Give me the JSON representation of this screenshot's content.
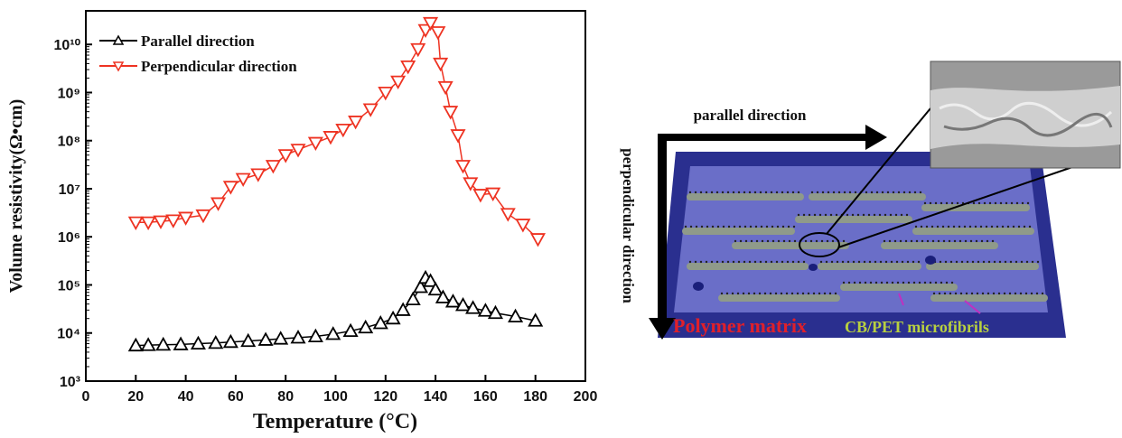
{
  "chart_data": {
    "type": "line",
    "x_label": "Temperature (°C)",
    "y_label": "Volume resistivity(Ω•cm)",
    "xlim": [
      0,
      200
    ],
    "xticks": [
      0,
      20,
      40,
      60,
      80,
      100,
      120,
      140,
      160,
      180,
      200
    ],
    "ylim": [
      1000,
      50000000000
    ],
    "log_y": true,
    "yticks": [
      {
        "value": 1000,
        "label": "10³"
      },
      {
        "value": 10000,
        "label": "10⁴"
      },
      {
        "value": 100000,
        "label": "10⁵"
      },
      {
        "value": 1000000,
        "label": "10⁶"
      },
      {
        "value": 10000000,
        "label": "10⁷"
      },
      {
        "value": 100000000,
        "label": "10⁸"
      },
      {
        "value": 1000000000,
        "label": "10⁹"
      },
      {
        "value": 10000000000,
        "label": "10¹⁰"
      }
    ],
    "legend": "upper left",
    "series": [
      {
        "name": "Parallel direction",
        "color": "#000000",
        "marker": "triangle-up",
        "x": [
          20,
          25,
          31,
          38,
          45,
          52,
          58,
          65,
          72,
          78,
          85,
          92,
          99,
          106,
          112,
          118,
          123,
          127,
          131,
          134,
          136,
          138,
          140,
          143,
          147,
          151,
          155,
          160,
          164,
          172,
          180
        ],
        "values": [
          5500,
          5600,
          5700,
          5800,
          6000,
          6200,
          6500,
          6800,
          7200,
          7600,
          8000,
          8500,
          9500,
          11000,
          13000,
          16000,
          20000,
          30000,
          50000,
          90000,
          140000,
          120000,
          80000,
          55000,
          45000,
          38000,
          33000,
          29000,
          26000,
          22000,
          18000
        ]
      },
      {
        "name": "Perpendicular direction",
        "color": "#ee3322",
        "marker": "triangle-down",
        "x": [
          20,
          25,
          30,
          35,
          40,
          47,
          53,
          58,
          63,
          69,
          75,
          80,
          85,
          92,
          98,
          103,
          108,
          114,
          120,
          125,
          129,
          133,
          136,
          138,
          141,
          142,
          144,
          146,
          149,
          151,
          154,
          158,
          163,
          169,
          175,
          181
        ],
        "values": [
          2000000,
          2000000,
          2100000,
          2200000,
          2500000,
          2800000,
          5000000,
          11000000,
          16000000,
          20000000,
          30000000,
          50000000,
          65000000,
          90000000,
          120000000,
          170000000,
          250000000,
          450000000,
          1000000000,
          1700000000,
          3500000000,
          8000000000,
          20000000000,
          28000000000,
          18000000000,
          4000000000,
          1300000000,
          400000000,
          130000000,
          30000000,
          13000000,
          7500000,
          8000000,
          3000000,
          1800000,
          900000
        ]
      }
    ]
  },
  "diagram": {
    "parallel_label": "parallel direction",
    "perpendicular_label": "perpendicular direction",
    "matrix_label": "Polymer matrix",
    "fibril_label": "CB/PET microfibrils"
  }
}
